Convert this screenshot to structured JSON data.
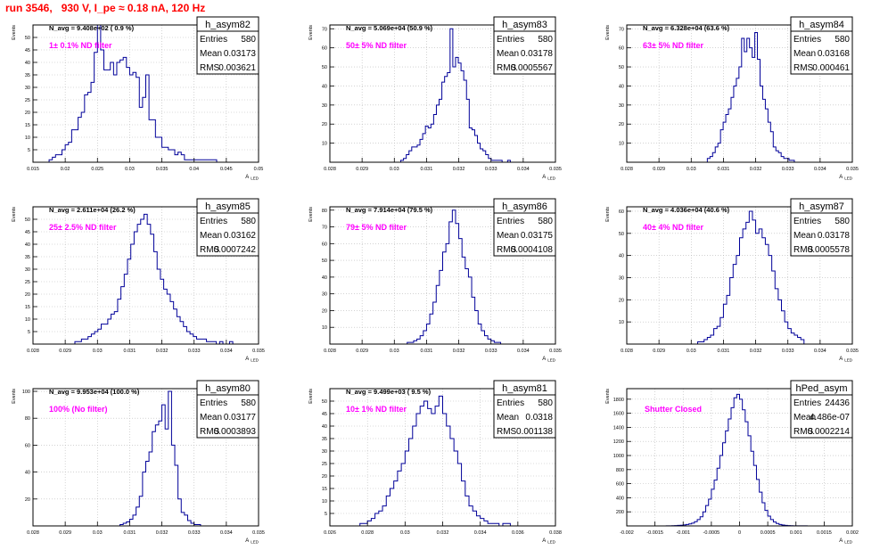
{
  "run_title": "run 3546,   930 V, I_pe ≈ 0.18 nA, 120 Hz",
  "stats_labels": {
    "entries": "Entries",
    "mean": "Mean",
    "rms": "RMS"
  },
  "ylabel": "Events",
  "xlabel": "A",
  "xlabel_sub": "LED",
  "chart_data": [
    {
      "type": "histogram",
      "name": "h_asym82",
      "navg": "N_avg = 9.408e+02 ( 0.9 %)",
      "filter": "1± 0.1% ND filter",
      "entries": "580",
      "mean": "0.03173",
      "rms": "0.003621",
      "xlim": [
        0.015,
        0.05
      ],
      "ylim": [
        0,
        55
      ],
      "xticks": [
        "0.015",
        "0.02",
        "0.025",
        "0.03",
        "0.035",
        "0.04",
        "0.045",
        "0.05"
      ],
      "yticks": [
        "5",
        "10",
        "15",
        "20",
        "25",
        "30",
        "35",
        "40",
        "45",
        "50"
      ],
      "bins": {
        "x0": 0.0175,
        "x1": 0.044,
        "values": [
          1,
          2,
          3,
          3,
          5,
          7,
          8,
          13,
          13,
          18,
          20,
          27,
          28,
          32,
          44,
          55,
          45,
          37,
          37,
          40,
          35,
          40,
          41,
          42,
          38,
          35,
          36,
          34,
          22,
          26,
          35,
          17,
          17,
          10,
          10,
          6,
          6,
          5,
          5,
          3,
          4,
          3,
          1,
          1,
          1,
          1,
          1,
          1,
          1,
          1,
          1,
          1,
          0
        ]
      }
    },
    {
      "type": "histogram",
      "name": "h_asym83",
      "navg": "N_avg = 5.069e+04 (50.9 %)",
      "filter": "50± 5% ND filter",
      "entries": "580",
      "mean": "0.03178",
      "rms": "0.0005567",
      "xlim": [
        0.028,
        0.035
      ],
      "ylim": [
        0,
        72
      ],
      "xticks": [
        "0.028",
        "0.029",
        "0.03",
        "0.031",
        "0.032",
        "0.033",
        "0.034",
        "0.035"
      ],
      "yticks": [
        "10",
        "20",
        "30",
        "40",
        "50",
        "60",
        "70"
      ],
      "bins": {
        "x0": 0.0302,
        "x1": 0.0336,
        "values": [
          1,
          2,
          4,
          6,
          8,
          8,
          9,
          12,
          15,
          19,
          18,
          20,
          25,
          30,
          33,
          42,
          45,
          47,
          70,
          50,
          55,
          52,
          48,
          43,
          33,
          18,
          17,
          14,
          10,
          7,
          6,
          4,
          2,
          1,
          1,
          1,
          1,
          0,
          0,
          1
        ]
      }
    },
    {
      "type": "histogram",
      "name": "h_asym84",
      "navg": "N_avg = 6.328e+04 (63.6 %)",
      "filter": "63± 5% ND filter",
      "entries": "580",
      "mean": "0.03168",
      "rms": "0.000461",
      "xlim": [
        0.028,
        0.035
      ],
      "ylim": [
        0,
        72
      ],
      "xticks": [
        "0.028",
        "0.029",
        "0.03",
        "0.031",
        "0.032",
        "0.033",
        "0.034",
        "0.035"
      ],
      "yticks": [
        "10",
        "20",
        "30",
        "40",
        "50",
        "60",
        "70"
      ],
      "bins": {
        "x0": 0.0305,
        "x1": 0.0332,
        "values": [
          2,
          3,
          5,
          8,
          10,
          17,
          21,
          25,
          28,
          34,
          40,
          44,
          50,
          65,
          58,
          65,
          60,
          55,
          68,
          54,
          40,
          33,
          28,
          21,
          16,
          8,
          6,
          5,
          3,
          2,
          2,
          1,
          1
        ]
      }
    },
    {
      "type": "histogram",
      "name": "h_asym85",
      "navg": "N_avg = 2.611e+04 (26.2 %)",
      "filter": "25± 2.5% ND filter",
      "entries": "580",
      "mean": "0.03162",
      "rms": "0.0007242",
      "xlim": [
        0.028,
        0.035
      ],
      "ylim": [
        0,
        55
      ],
      "xticks": [
        "0.028",
        "0.029",
        "0.03",
        "0.031",
        "0.032",
        "0.033",
        "0.034",
        "0.035"
      ],
      "yticks": [
        "5",
        "10",
        "15",
        "20",
        "25",
        "30",
        "35",
        "40",
        "45",
        "50"
      ],
      "bins": {
        "x0": 0.0293,
        "x1": 0.0342,
        "values": [
          1,
          1,
          2,
          2,
          3,
          4,
          5,
          6,
          8,
          8,
          10,
          12,
          13,
          18,
          23,
          28,
          34,
          40,
          45,
          48,
          50,
          52,
          48,
          44,
          37,
          30,
          26,
          22,
          20,
          17,
          14,
          11,
          9,
          7,
          5,
          4,
          3,
          2,
          2,
          2,
          1,
          1,
          1,
          0,
          1,
          0,
          0,
          1
        ]
      }
    },
    {
      "type": "histogram",
      "name": "h_asym86",
      "navg": "N_avg = 7.914e+04 (79.5 %)",
      "filter": "79± 5% ND filter",
      "entries": "580",
      "mean": "0.03175",
      "rms": "0.0004108",
      "xlim": [
        0.028,
        0.035
      ],
      "ylim": [
        0,
        82
      ],
      "xticks": [
        "0.028",
        "0.029",
        "0.03",
        "0.031",
        "0.032",
        "0.033",
        "0.034",
        "0.035"
      ],
      "yticks": [
        "10",
        "20",
        "30",
        "40",
        "50",
        "60",
        "70",
        "80"
      ],
      "bins": {
        "x0": 0.0304,
        "x1": 0.0333,
        "values": [
          1,
          1,
          2,
          3,
          5,
          8,
          12,
          18,
          25,
          35,
          44,
          55,
          60,
          73,
          80,
          72,
          63,
          52,
          45,
          40,
          28,
          20,
          12,
          8,
          5,
          3,
          2,
          1,
          1
        ]
      }
    },
    {
      "type": "histogram",
      "name": "h_asym87",
      "navg": "N_avg = 4.036e+04 (40.6 %)",
      "filter": "40± 4% ND filter",
      "entries": "580",
      "mean": "0.03178",
      "rms": "0.0005578",
      "xlim": [
        0.028,
        0.035
      ],
      "ylim": [
        0,
        62
      ],
      "xticks": [
        "0.028",
        "0.029",
        "0.03",
        "0.031",
        "0.032",
        "0.033",
        "0.034",
        "0.035"
      ],
      "yticks": [
        "10",
        "20",
        "30",
        "40",
        "50",
        "60"
      ],
      "bins": {
        "x0": 0.0302,
        "x1": 0.0335,
        "values": [
          1,
          1,
          2,
          3,
          4,
          7,
          8,
          12,
          18,
          22,
          30,
          36,
          40,
          48,
          52,
          55,
          60,
          56,
          50,
          52,
          48,
          45,
          40,
          33,
          25,
          20,
          15,
          10,
          7,
          5,
          4,
          3,
          2
        ]
      }
    },
    {
      "type": "histogram",
      "name": "h_asym80",
      "navg": "N_avg = 9.953e+04 (100.0 %)",
      "filter": "100% (No filter)",
      "entries": "580",
      "mean": "0.03177",
      "rms": "0.0003893",
      "xlim": [
        0.028,
        0.035
      ],
      "ylim": [
        0,
        102
      ],
      "xticks": [
        "0.028",
        "0.029",
        "0.03",
        "0.031",
        "0.032",
        "0.033",
        "0.034",
        "0.035"
      ],
      "yticks": [
        "20",
        "40",
        "60",
        "80",
        "100"
      ],
      "bins": {
        "x0": 0.0307,
        "x1": 0.0332,
        "values": [
          1,
          2,
          3,
          5,
          8,
          14,
          22,
          40,
          48,
          55,
          70,
          75,
          78,
          90,
          72,
          100,
          60,
          45,
          20,
          10,
          8,
          4,
          2,
          1,
          1
        ]
      }
    },
    {
      "type": "histogram",
      "name": "h_asym81",
      "navg": "N_avg = 9.499e+03 ( 9.5 %)",
      "filter": "10± 1% ND filter",
      "entries": "580",
      "mean": "0.0318",
      "rms": "0.001138",
      "xlim": [
        0.026,
        0.038
      ],
      "ylim": [
        0,
        55
      ],
      "xticks": [
        "0.026",
        "0.028",
        "0.03",
        "0.032",
        "0.034",
        "0.036",
        "0.038"
      ],
      "yticks": [
        "5",
        "10",
        "15",
        "20",
        "25",
        "30",
        "35",
        "40",
        "45",
        "50"
      ],
      "bins": {
        "x0": 0.0276,
        "x1": 0.0356,
        "values": [
          1,
          1,
          2,
          3,
          5,
          6,
          8,
          12,
          15,
          18,
          22,
          25,
          30,
          35,
          40,
          45,
          48,
          50,
          47,
          45,
          48,
          52,
          45,
          40,
          35,
          30,
          25,
          18,
          12,
          8,
          6,
          4,
          3,
          2,
          1,
          1,
          1,
          0,
          1,
          1
        ]
      }
    },
    {
      "type": "histogram",
      "name": "hPed_asym",
      "navg": "",
      "filter": "Shutter Closed",
      "entries": "24436",
      "mean": "4.486e-07",
      "rms": "0.0002214",
      "xlim": [
        -0.002,
        0.002
      ],
      "ylim": [
        0,
        1950
      ],
      "xticks": [
        "-0.002",
        "-0.0015",
        "-0.001",
        "-0.0005",
        "0",
        "0.0005",
        "0.001",
        "0.0015",
        "0.002"
      ],
      "yticks": [
        "200",
        "400",
        "600",
        "800",
        "1000",
        "1200",
        "1400",
        "1600",
        "1800"
      ],
      "bins": {
        "x0": -0.0013,
        "x1": 0.00125,
        "values": [
          1,
          2,
          3,
          5,
          8,
          10,
          14,
          20,
          28,
          40,
          60,
          90,
          130,
          200,
          290,
          380,
          520,
          650,
          820,
          1000,
          1180,
          1350,
          1520,
          1680,
          1820,
          1870,
          1800,
          1650,
          1480,
          1280,
          1060,
          860,
          660,
          480,
          330,
          220,
          140,
          90,
          55,
          35,
          20,
          12,
          8,
          5,
          3,
          2,
          1,
          1,
          1,
          1,
          0
        ]
      }
    }
  ]
}
